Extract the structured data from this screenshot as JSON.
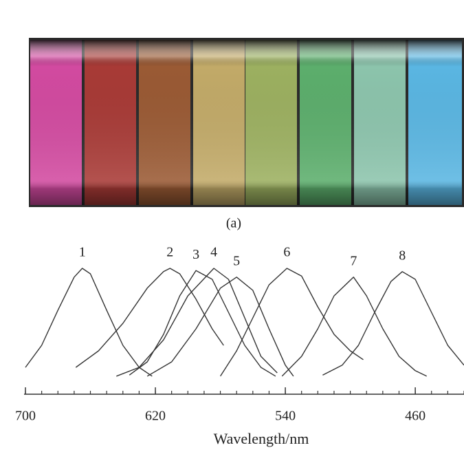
{
  "chart_data": {
    "type": "line",
    "caption": "(a)",
    "x_label": "Wavelength/nm",
    "xlim": [
      700,
      430
    ],
    "xticks": [
      700,
      620,
      540,
      460
    ],
    "x_minor_ticks": [
      700,
      690,
      680,
      670,
      660,
      650,
      640,
      630,
      620,
      610,
      600,
      590,
      580,
      570,
      560,
      550,
      540,
      530,
      520,
      510,
      500,
      490,
      480,
      470,
      460,
      450,
      440,
      430
    ],
    "ylim": [
      0,
      1
    ],
    "series": [
      {
        "name": "1",
        "color": "#333333",
        "x": [
          700,
          690,
          680,
          670,
          665,
          660,
          650,
          640,
          630,
          622
        ],
        "values": [
          0.1,
          0.3,
          0.62,
          0.92,
          1.0,
          0.95,
          0.62,
          0.3,
          0.1,
          0.02
        ]
      },
      {
        "name": "2",
        "color": "#333333",
        "x": [
          669,
          655,
          640,
          625,
          615,
          611,
          605,
          595,
          585,
          578
        ],
        "values": [
          0.1,
          0.25,
          0.5,
          0.82,
          0.97,
          1.0,
          0.95,
          0.72,
          0.45,
          0.3
        ]
      },
      {
        "name": "3",
        "color": "#333333",
        "x": [
          636,
          625,
          615,
          605,
          595,
          585,
          575,
          565,
          555,
          546
        ],
        "values": [
          0.03,
          0.15,
          0.4,
          0.75,
          0.98,
          0.9,
          0.6,
          0.3,
          0.1,
          0.02
        ]
      },
      {
        "name": "4",
        "color": "#333333",
        "x": [
          644,
          630,
          615,
          600,
          584,
          575,
          565,
          555,
          545
        ],
        "values": [
          0.02,
          0.1,
          0.35,
          0.75,
          1.0,
          0.9,
          0.55,
          0.2,
          0.05
        ]
      },
      {
        "name": "5",
        "color": "#333333",
        "x": [
          625,
          610,
          595,
          580,
          570,
          560,
          550,
          540,
          535
        ],
        "values": [
          0.02,
          0.15,
          0.45,
          0.82,
          0.92,
          0.8,
          0.45,
          0.12,
          0.02
        ]
      },
      {
        "name": "6",
        "color": "#333333",
        "x": [
          580,
          570,
          560,
          550,
          539,
          530,
          520,
          510,
          500,
          492
        ],
        "values": [
          0.02,
          0.25,
          0.55,
          0.85,
          1.0,
          0.93,
          0.65,
          0.4,
          0.25,
          0.17
        ]
      },
      {
        "name": "7",
        "color": "#333333",
        "x": [
          542,
          530,
          520,
          510,
          498,
          490,
          480,
          470,
          460,
          453
        ],
        "values": [
          0.02,
          0.2,
          0.45,
          0.75,
          0.92,
          0.75,
          0.45,
          0.2,
          0.07,
          0.02
        ]
      },
      {
        "name": "8",
        "color": "#333333",
        "x": [
          517,
          505,
          495,
          485,
          475,
          468,
          460,
          450,
          440,
          430
        ],
        "values": [
          0.03,
          0.12,
          0.3,
          0.6,
          0.88,
          0.97,
          0.9,
          0.6,
          0.3,
          0.12
        ]
      }
    ]
  }
}
